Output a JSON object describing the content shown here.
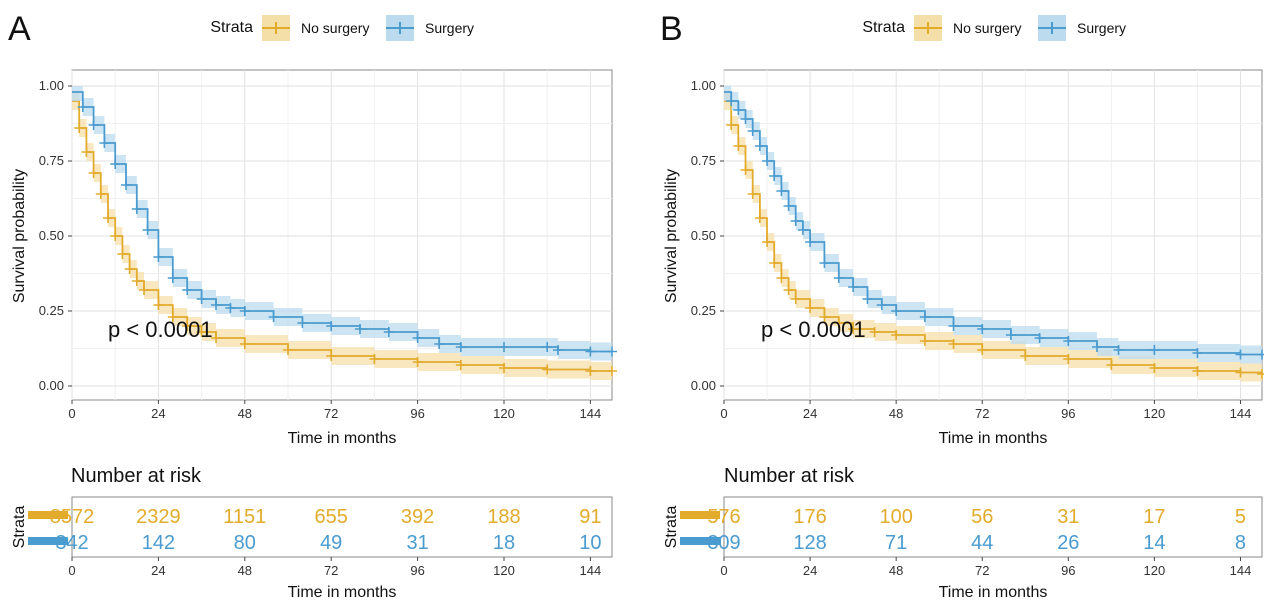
{
  "colors": {
    "no_surgery": "#E3AB2C",
    "surgery": "#4A9BD0",
    "band_no_surgery": "#F5DFA9",
    "band_surgery": "#BCDBEF",
    "grid": "#E2E2E2",
    "axis": "#444444",
    "text": "#111111"
  },
  "panels": [
    {
      "letter": "A",
      "legend_title": "Strata",
      "legend": [
        "No surgery",
        "Surgery"
      ],
      "pvalue": "p < 0.0001",
      "xlabel": "Time in months",
      "ylabel": "Survival probability",
      "risk_title": "Number at risk",
      "risk_ylabel": "Strata",
      "risk_xlabel": "Time in months"
    },
    {
      "letter": "B",
      "legend_title": "Strata",
      "legend": [
        "No surgery",
        "Surgery"
      ],
      "pvalue": "p < 0.0001",
      "xlabel": "Time in months",
      "ylabel": "Survival probability",
      "risk_title": "Number at risk",
      "risk_ylabel": "Strata",
      "risk_xlabel": "Time in months"
    }
  ],
  "chart_data": [
    {
      "type": "line",
      "title": "A",
      "xlabel": "Time in months",
      "ylabel": "Survival probability",
      "xlim": [
        0,
        150
      ],
      "ylim": [
        0,
        1
      ],
      "xticks": [
        0,
        24,
        48,
        72,
        96,
        120,
        144
      ],
      "yticks": [
        "0.00",
        "0.25",
        "0.50",
        "0.75",
        "1.00"
      ],
      "grid": true,
      "legend_position": "top",
      "annotation": "p < 0.0001",
      "series": [
        {
          "name": "No surgery",
          "x": [
            0,
            2,
            4,
            6,
            8,
            10,
            12,
            14,
            16,
            18,
            20,
            24,
            28,
            32,
            36,
            40,
            48,
            60,
            72,
            84,
            96,
            108,
            120,
            132,
            144,
            150
          ],
          "y": [
            0.95,
            0.86,
            0.78,
            0.71,
            0.64,
            0.56,
            0.5,
            0.44,
            0.39,
            0.35,
            0.32,
            0.27,
            0.23,
            0.2,
            0.18,
            0.16,
            0.14,
            0.12,
            0.1,
            0.09,
            0.08,
            0.07,
            0.06,
            0.055,
            0.05,
            0.05
          ]
        },
        {
          "name": "Surgery",
          "x": [
            0,
            3,
            6,
            9,
            12,
            15,
            18,
            21,
            24,
            28,
            32,
            36,
            40,
            44,
            48,
            56,
            64,
            72,
            80,
            88,
            96,
            102,
            108,
            120,
            132,
            135,
            144,
            150
          ],
          "y": [
            0.98,
            0.93,
            0.87,
            0.81,
            0.74,
            0.67,
            0.59,
            0.52,
            0.43,
            0.36,
            0.32,
            0.29,
            0.27,
            0.26,
            0.25,
            0.23,
            0.21,
            0.2,
            0.19,
            0.18,
            0.16,
            0.14,
            0.13,
            0.13,
            0.13,
            0.12,
            0.115,
            0.115
          ]
        }
      ],
      "risk_table": {
        "times": [
          0,
          24,
          48,
          72,
          96,
          120,
          144
        ],
        "No surgery": [
          8572,
          2329,
          1151,
          655,
          392,
          188,
          91
        ],
        "Surgery": [
          342,
          142,
          80,
          49,
          31,
          18,
          10
        ]
      }
    },
    {
      "type": "line",
      "title": "B",
      "xlabel": "Time in months",
      "ylabel": "Survival probability",
      "xlim": [
        0,
        150
      ],
      "ylim": [
        0,
        1
      ],
      "xticks": [
        0,
        24,
        48,
        72,
        96,
        120,
        144
      ],
      "yticks": [
        "0.00",
        "0.25",
        "0.50",
        "0.75",
        "1.00"
      ],
      "grid": true,
      "legend_position": "top",
      "annotation": "p < 0.0001",
      "series": [
        {
          "name": "No surgery",
          "x": [
            0,
            2,
            4,
            6,
            8,
            10,
            12,
            14,
            16,
            18,
            20,
            24,
            28,
            32,
            36,
            42,
            48,
            56,
            64,
            72,
            84,
            96,
            108,
            120,
            132,
            144,
            150
          ],
          "y": [
            0.95,
            0.87,
            0.8,
            0.72,
            0.64,
            0.56,
            0.48,
            0.41,
            0.36,
            0.32,
            0.29,
            0.26,
            0.23,
            0.21,
            0.19,
            0.18,
            0.17,
            0.15,
            0.14,
            0.12,
            0.1,
            0.09,
            0.07,
            0.06,
            0.05,
            0.045,
            0.04
          ]
        },
        {
          "name": "Surgery",
          "x": [
            0,
            2,
            4,
            6,
            8,
            10,
            12,
            14,
            16,
            18,
            20,
            22,
            24,
            28,
            32,
            36,
            40,
            44,
            48,
            56,
            64,
            72,
            80,
            88,
            96,
            104,
            110,
            120,
            132,
            144,
            150
          ],
          "y": [
            0.98,
            0.95,
            0.92,
            0.89,
            0.85,
            0.8,
            0.75,
            0.7,
            0.65,
            0.6,
            0.55,
            0.52,
            0.48,
            0.41,
            0.36,
            0.33,
            0.29,
            0.27,
            0.25,
            0.23,
            0.2,
            0.19,
            0.17,
            0.16,
            0.15,
            0.13,
            0.12,
            0.12,
            0.11,
            0.105,
            0.105
          ]
        }
      ],
      "risk_table": {
        "times": [
          0,
          24,
          48,
          72,
          96,
          120,
          144
        ],
        "No surgery": [
          576,
          176,
          100,
          56,
          31,
          17,
          5
        ],
        "Surgery": [
          309,
          128,
          71,
          44,
          26,
          14,
          8
        ]
      }
    }
  ]
}
